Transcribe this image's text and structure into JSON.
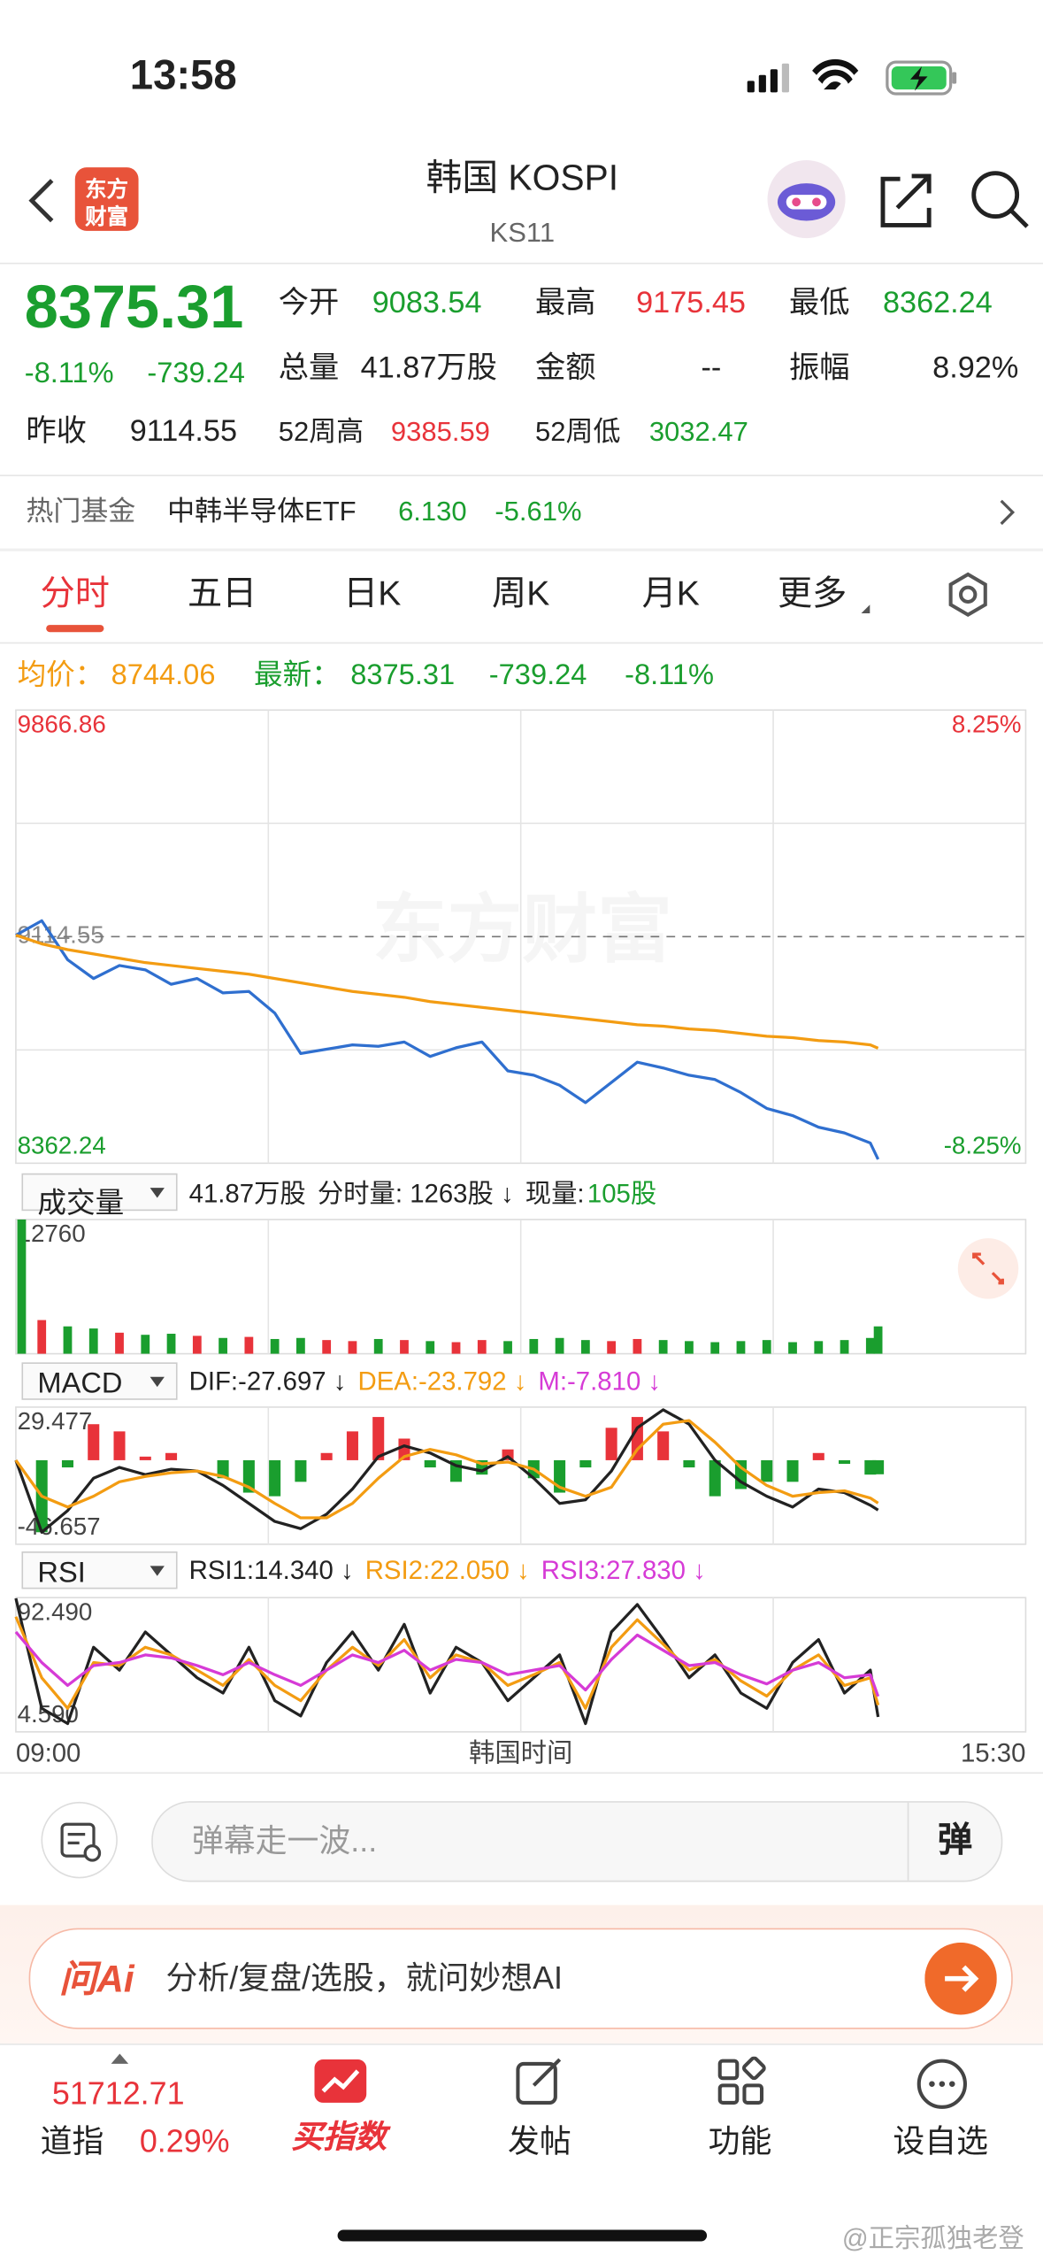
{
  "status_bar": {
    "time": "13:58"
  },
  "header": {
    "logo_line1": "东方",
    "logo_line2": "财富",
    "title": "韩国 KOSPI",
    "code": "KS11"
  },
  "quote": {
    "price": "8375.31",
    "change_pct": "-8.11%",
    "change": "-739.24",
    "open_label": "今开",
    "open": "9083.54",
    "high_label": "最高",
    "high": "9175.45",
    "low_label": "最低",
    "low": "8362.24",
    "volume_label": "总量",
    "volume": "41.87万股",
    "amount_label": "金额",
    "amount": "--",
    "amplitude_label": "振幅",
    "amplitude": "8.92%",
    "prev_close_label": "昨收",
    "prev_close": "9114.55",
    "high52_label": "52周高",
    "high52": "9385.59",
    "low52_label": "52周低",
    "low52": "3032.47"
  },
  "fund": {
    "label": "热门基金",
    "name": "中韩半导体ETF",
    "price": "6.130",
    "change_pct": "-5.61%"
  },
  "tabs": [
    "分时",
    "五日",
    "日K",
    "周K",
    "月K",
    "更多"
  ],
  "summary": {
    "latest_change": "-739.24",
    "latest_change_pct": "-8.11%"
  },
  "chart_watermark": "东方财富",
  "chart_data": [
    {
      "type": "line",
      "x": [
        "09:00",
        "09:10",
        "09:20",
        "09:30",
        "09:40",
        "09:50",
        "10:00",
        "10:10",
        "10:20",
        "10:30",
        "10:40",
        "10:50",
        "11:00",
        "11:10",
        "11:20",
        "11:30",
        "11:40",
        "11:50",
        "12:00",
        "12:10",
        "12:20",
        "12:30",
        "12:40",
        "12:50",
        "13:00",
        "13:10",
        "13:20",
        "13:30",
        "13:40",
        "13:50",
        "14:00",
        "14:10",
        "14:20",
        "14:30",
        "14:33"
      ],
      "xlim": [
        "09:00",
        "15:30"
      ],
      "ylim": [
        8362.24,
        9866.86
      ],
      "yticks": [
        8362.24,
        9114.55,
        9866.86
      ],
      "y2lim": [
        -8.25,
        8.25
      ],
      "y2ticks": [
        {
          "value": -8.25,
          "label": "-8.25%"
        },
        {
          "value": 8.25,
          "label": "8.25%"
        }
      ],
      "grid": {
        "rows": 4,
        "columns": 4
      },
      "series": [
        {
          "name": "最新：",
          "color": "#2f6fcf",
          "values": [
            9119.3,
            9167.3,
            9037.9,
            8975.6,
            9018.7,
            9004.3,
            8956.4,
            8975.6,
            8927.7,
            8932.5,
            8860.6,
            8726.4,
            8740.8,
            8755.2,
            8750.4,
            8764.7,
            8716.8,
            8745.6,
            8764.7,
            8668.9,
            8654.5,
            8621.0,
            8563.5,
            8630.6,
            8697.7,
            8678.5,
            8654.5,
            8640.1,
            8597.0,
            8544.3,
            8520.3,
            8482.0,
            8462.8,
            8429.3,
            8375.31
          ]
        },
        {
          "name": "均价：",
          "color": "#f39c12",
          "values": [
            9119.3,
            9090.6,
            9071.4,
            9057.1,
            9042.7,
            9028.3,
            9018.7,
            9009.1,
            8999.5,
            8990.0,
            8975.6,
            8961.2,
            8946.8,
            8932.5,
            8922.9,
            8913.3,
            8898.9,
            8889.3,
            8879.7,
            8870.2,
            8860.6,
            8851.0,
            8841.4,
            8831.8,
            8822.2,
            8817.4,
            8807.9,
            8803.1,
            8793.5,
            8783.9,
            8779.1,
            8769.5,
            8764.7,
            8755.2,
            8744.06
          ]
        }
      ]
    },
    {
      "type": "bar",
      "title": "成交量",
      "info": [
        "41.87万股",
        "分时量: 1263股 ↓",
        "现量:",
        "105股"
      ],
      "x": [
        "09:00",
        "09:10",
        "09:20",
        "09:30",
        "09:40",
        "09:50",
        "10:00",
        "10:10",
        "10:20",
        "10:30",
        "10:40",
        "10:50",
        "11:00",
        "11:10",
        "11:20",
        "11:30",
        "11:40",
        "11:50",
        "12:00",
        "12:10",
        "12:20",
        "12:30",
        "12:40",
        "12:50",
        "13:00",
        "13:10",
        "13:20",
        "13:30",
        "13:40",
        "13:50",
        "14:00",
        "14:10",
        "14:20",
        "14:30",
        "14:33"
      ],
      "values": [
        12760,
        3200,
        2600,
        2400,
        2000,
        1800,
        1900,
        1700,
        1500,
        1600,
        1400,
        1500,
        1300,
        1200,
        1400,
        1300,
        1200,
        1100,
        1300,
        1200,
        1400,
        1500,
        1300,
        1200,
        1400,
        1300,
        1200,
        1100,
        1200,
        1300,
        1100,
        1200,
        1300,
        1500,
        2600
      ],
      "colors": [
        "#1a9e2e",
        "#e8333a",
        "#1a9e2e",
        "#1a9e2e",
        "#e8333a",
        "#1a9e2e",
        "#1a9e2e",
        "#e8333a",
        "#1a9e2e",
        "#e8333a",
        "#1a9e2e",
        "#1a9e2e",
        "#e8333a",
        "#e8333a",
        "#1a9e2e",
        "#e8333a",
        "#1a9e2e",
        "#e8333a",
        "#e8333a",
        "#1a9e2e",
        "#1a9e2e",
        "#1a9e2e",
        "#1a9e2e",
        "#e8333a",
        "#e8333a",
        "#1a9e2e",
        "#1a9e2e",
        "#1a9e2e",
        "#1a9e2e",
        "#1a9e2e",
        "#1a9e2e",
        "#1a9e2e",
        "#1a9e2e",
        "#1a9e2e",
        "#1a9e2e"
      ],
      "xlim": [
        "09:00",
        "15:30"
      ],
      "ylim": [
        0,
        12760
      ],
      "yticks": [
        12760
      ],
      "grid": {
        "columns": 4
      }
    },
    {
      "type": "macd",
      "title": "MACD",
      "x": [
        "09:00",
        "09:10",
        "09:20",
        "09:30",
        "09:40",
        "09:50",
        "10:00",
        "10:10",
        "10:20",
        "10:30",
        "10:40",
        "10:50",
        "11:00",
        "11:10",
        "11:20",
        "11:30",
        "11:40",
        "11:50",
        "12:00",
        "12:10",
        "12:20",
        "12:30",
        "12:40",
        "12:50",
        "13:00",
        "13:10",
        "13:20",
        "13:30",
        "13:40",
        "13:50",
        "14:00",
        "14:10",
        "14:20",
        "14:30",
        "14:33"
      ],
      "xlim": [
        "09:00",
        "15:30"
      ],
      "ylim": [
        -46.657,
        29.477
      ],
      "yticks": [
        29.477,
        -46.657
      ],
      "grid": {
        "columns": 4
      },
      "series": [
        {
          "name": "DIF:-27.697 ↓",
          "color": "#222222",
          "values": [
            0,
            -40,
            -28,
            -10,
            -4,
            -8,
            -5,
            -6,
            -14,
            -24,
            -34,
            -38,
            -30,
            -16,
            2,
            8,
            4,
            -3,
            -6,
            2,
            -10,
            -24,
            -22,
            -6,
            18,
            28,
            20,
            0,
            -12,
            -20,
            -26,
            -16,
            -18,
            -25,
            -27.697
          ]
        },
        {
          "name": "DEA:-23.792 ↓",
          "color": "#f39c12",
          "values": [
            0,
            -20,
            -26,
            -20,
            -12,
            -9,
            -7,
            -6,
            -9,
            -15,
            -24,
            -32,
            -32,
            -24,
            -10,
            2,
            6,
            3,
            -2,
            -1,
            -5,
            -15,
            -20,
            -15,
            6,
            20,
            22,
            10,
            -4,
            -14,
            -20,
            -18,
            -17,
            -21,
            -23.792
          ]
        },
        {
          "name": "M:-7.810 ↓",
          "color": "#d63bd6",
          "style": "histogram",
          "up_color": "#e8333a",
          "down_color": "#1a9e2e",
          "values": [
            0,
            -40,
            -4,
            20,
            16,
            2,
            4,
            0,
            -10,
            -18,
            -20,
            -12,
            4,
            16,
            24,
            12,
            -4,
            -12,
            -8,
            6,
            -10,
            -18,
            -4,
            18,
            24,
            16,
            -4,
            -20,
            -16,
            -12,
            -12,
            4,
            -2,
            -8,
            -7.81
          ]
        }
      ]
    },
    {
      "type": "line",
      "title": "RSI",
      "x": [
        "09:00",
        "09:10",
        "09:20",
        "09:30",
        "09:40",
        "09:50",
        "10:00",
        "10:10",
        "10:20",
        "10:30",
        "10:40",
        "10:50",
        "11:00",
        "11:10",
        "11:20",
        "11:30",
        "11:40",
        "11:50",
        "12:00",
        "12:10",
        "12:20",
        "12:30",
        "12:40",
        "12:50",
        "13:00",
        "13:10",
        "13:20",
        "13:30",
        "13:40",
        "13:50",
        "14:00",
        "14:10",
        "14:20",
        "14:30",
        "14:33"
      ],
      "xlim": [
        "09:00",
        "15:30"
      ],
      "xticks": [
        "09:00",
        "15:30"
      ],
      "xlabel": "韩国时间",
      "ylim": [
        4.59,
        92.49
      ],
      "yticks": [
        {
          "value": 92.49,
          "label": "92.490"
        },
        {
          "value": 4.59,
          "label": "4.590"
        }
      ],
      "grid": {
        "columns": 4
      },
      "series": [
        {
          "name": "RSI1:14.340 ↓",
          "color": "#222222",
          "values": [
            92,
            20,
            10,
            60,
            45,
            70,
            55,
            40,
            30,
            60,
            25,
            15,
            50,
            70,
            45,
            75,
            30,
            60,
            50,
            25,
            40,
            55,
            10,
            70,
            88,
            65,
            40,
            55,
            30,
            20,
            50,
            65,
            30,
            45,
            14.34
          ]
        },
        {
          "name": "RSI2:22.050 ↓",
          "color": "#f39c12",
          "values": [
            80,
            40,
            20,
            50,
            48,
            60,
            55,
            45,
            35,
            52,
            35,
            25,
            45,
            60,
            48,
            65,
            40,
            55,
            50,
            35,
            42,
            50,
            20,
            60,
            78,
            62,
            45,
            52,
            38,
            28,
            45,
            55,
            35,
            40,
            22.05
          ]
        },
        {
          "name": "RSI3:27.830 ↓",
          "color": "#d63bd6",
          "values": [
            70,
            50,
            35,
            48,
            50,
            55,
            53,
            48,
            42,
            50,
            42,
            35,
            45,
            55,
            50,
            58,
            45,
            52,
            50,
            42,
            45,
            48,
            32,
            52,
            68,
            58,
            48,
            50,
            42,
            36,
            45,
            50,
            40,
            42,
            27.83
          ]
        }
      ]
    }
  ],
  "comment_bar": {
    "placeholder": "弹幕走一波...",
    "button": "弹"
  },
  "ai_bar": {
    "brand": "问Ai",
    "prompt": "分析/复盘/选股，就问妙想AI"
  },
  "bottom_nav": {
    "index_value": "51712.71",
    "index_name": "道指",
    "index_change": "0.29%",
    "items": [
      "买指数",
      "发帖",
      "功能",
      "设自选"
    ]
  },
  "watermark": "@正宗孤独老登"
}
